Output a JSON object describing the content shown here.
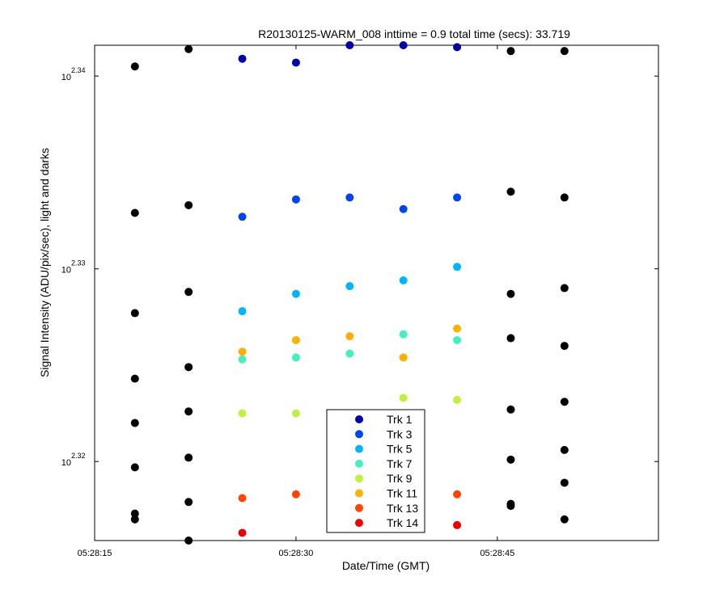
{
  "chart_data": {
    "type": "scatter",
    "title": "R20130125-WARM_008 inttime = 0.9 total time (secs): 33.719",
    "xlabel": "Date/Time (GMT)",
    "ylabel": "Signal Intensity (ADU/pix/sec), light and darks",
    "x_ticks": [
      {
        "label": "05:28:15",
        "t": 0
      },
      {
        "label": "05:28:30",
        "t": 15
      },
      {
        "label": "05:28:45",
        "t": 30
      }
    ],
    "y_ticks": [
      {
        "base": "10",
        "exp": "2.32",
        "v": 2.32
      },
      {
        "base": "10",
        "exp": "2.33",
        "v": 2.33
      },
      {
        "base": "10",
        "exp": "2.34",
        "v": 2.34
      }
    ],
    "xlim": [
      "05:28:15",
      "05:28:57"
    ],
    "ylim_log10": [
      2.3159,
      2.3416
    ],
    "y_scale": "log",
    "grid": false,
    "legend_position": "bottom-center",
    "x_times": [
      "05:28:18",
      "05:28:22",
      "05:28:26",
      "05:28:30",
      "05:28:34",
      "05:28:38",
      "05:28:42",
      "05:28:46",
      "05:28:50"
    ],
    "series": [
      {
        "name": "Trk 1",
        "color": "#0000aa",
        "points": [
          {
            "x": "05:28:26",
            "y": 2.3409
          },
          {
            "x": "05:28:30",
            "y": 2.3407
          },
          {
            "x": "05:28:34",
            "y": 2.3416
          },
          {
            "x": "05:28:38",
            "y": 2.3416
          },
          {
            "x": "05:28:42",
            "y": 2.3415
          }
        ]
      },
      {
        "name": "Trk 3",
        "color": "#0044ee",
        "points": [
          {
            "x": "05:28:26",
            "y": 2.3327
          },
          {
            "x": "05:28:30",
            "y": 2.3336
          },
          {
            "x": "05:28:34",
            "y": 2.3337
          },
          {
            "x": "05:28:38",
            "y": 2.3331
          },
          {
            "x": "05:28:42",
            "y": 2.3337
          }
        ]
      },
      {
        "name": "Trk 5",
        "color": "#00b4ff",
        "points": [
          {
            "x": "05:28:26",
            "y": 2.3278
          },
          {
            "x": "05:28:30",
            "y": 2.3287
          },
          {
            "x": "05:28:34",
            "y": 2.3291
          },
          {
            "x": "05:28:38",
            "y": 2.3294
          },
          {
            "x": "05:28:42",
            "y": 2.3301
          }
        ]
      },
      {
        "name": "Trk 7",
        "color": "#44f0c0",
        "points": [
          {
            "x": "05:28:26",
            "y": 2.3253
          },
          {
            "x": "05:28:30",
            "y": 2.3254
          },
          {
            "x": "05:28:34",
            "y": 2.3256
          },
          {
            "x": "05:28:38",
            "y": 2.3266
          },
          {
            "x": "05:28:42",
            "y": 2.3263
          }
        ]
      },
      {
        "name": "Trk 9",
        "color": "#c0f040",
        "points": [
          {
            "x": "05:28:26",
            "y": 2.3225
          },
          {
            "x": "05:28:30",
            "y": 2.3225
          },
          {
            "x": "05:28:38",
            "y": 2.3233
          },
          {
            "x": "05:28:42",
            "y": 2.3232
          }
        ]
      },
      {
        "name": "Trk 11",
        "color": "#ffb000",
        "points": [
          {
            "x": "05:28:26",
            "y": 2.3257
          },
          {
            "x": "05:28:30",
            "y": 2.3263
          },
          {
            "x": "05:28:34",
            "y": 2.3265
          },
          {
            "x": "05:28:38",
            "y": 2.3254
          },
          {
            "x": "05:28:42",
            "y": 2.3269
          }
        ]
      },
      {
        "name": "Trk 13",
        "color": "#ff4400",
        "points": [
          {
            "x": "05:28:26",
            "y": 2.3181
          },
          {
            "x": "05:28:30",
            "y": 2.3183
          },
          {
            "x": "05:28:42",
            "y": 2.3183
          }
        ]
      },
      {
        "name": "Trk 14",
        "color": "#ee0000",
        "points": [
          {
            "x": "05:28:26",
            "y": 2.3163
          },
          {
            "x": "05:28:42",
            "y": 2.3167
          }
        ]
      }
    ],
    "dark_color": "#000000",
    "dark_points": [
      {
        "x": "05:28:18",
        "y": 2.3405
      },
      {
        "x": "05:28:18",
        "y": 2.3329
      },
      {
        "x": "05:28:18",
        "y": 2.3277
      },
      {
        "x": "05:28:18",
        "y": 2.3243
      },
      {
        "x": "05:28:18",
        "y": 2.322
      },
      {
        "x": "05:28:18",
        "y": 2.3197
      },
      {
        "x": "05:28:18",
        "y": 2.3173
      },
      {
        "x": "05:28:18",
        "y": 2.317
      },
      {
        "x": "05:28:22",
        "y": 2.3414
      },
      {
        "x": "05:28:22",
        "y": 2.3333
      },
      {
        "x": "05:28:22",
        "y": 2.3288
      },
      {
        "x": "05:28:22",
        "y": 2.3249
      },
      {
        "x": "05:28:22",
        "y": 2.3226
      },
      {
        "x": "05:28:22",
        "y": 2.3202
      },
      {
        "x": "05:28:22",
        "y": 2.3179
      },
      {
        "x": "05:28:22",
        "y": 2.3159
      },
      {
        "x": "05:28:46",
        "y": 2.3413
      },
      {
        "x": "05:28:46",
        "y": 2.334
      },
      {
        "x": "05:28:46",
        "y": 2.3287
      },
      {
        "x": "05:28:46",
        "y": 2.3264
      },
      {
        "x": "05:28:46",
        "y": 2.3227
      },
      {
        "x": "05:28:46",
        "y": 2.3201
      },
      {
        "x": "05:28:46",
        "y": 2.3178
      },
      {
        "x": "05:28:46",
        "y": 2.3177
      },
      {
        "x": "05:28:50",
        "y": 2.3413
      },
      {
        "x": "05:28:50",
        "y": 2.3337
      },
      {
        "x": "05:28:50",
        "y": 2.329
      },
      {
        "x": "05:28:50",
        "y": 2.326
      },
      {
        "x": "05:28:50",
        "y": 2.3231
      },
      {
        "x": "05:28:50",
        "y": 2.3206
      },
      {
        "x": "05:28:50",
        "y": 2.3189
      },
      {
        "x": "05:28:50",
        "y": 2.317
      }
    ]
  }
}
